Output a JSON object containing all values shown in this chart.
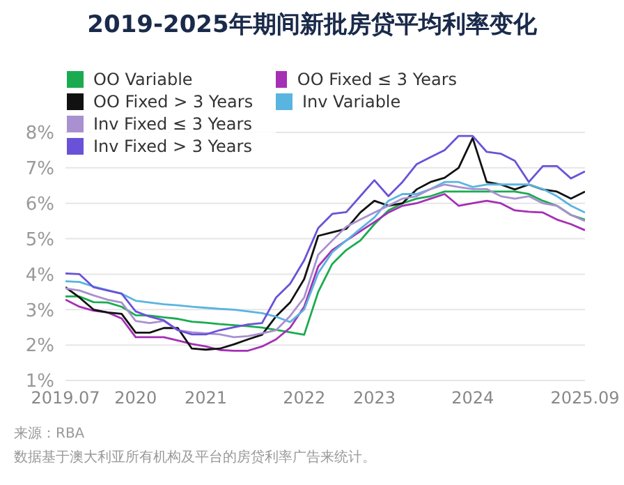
{
  "chart_data": {
    "type": "line",
    "title": "2019-2025年期间新批房贷平均利率变化",
    "categories": [
      "2019.07",
      null,
      null,
      null,
      null,
      "2020",
      null,
      null,
      null,
      null,
      "2021",
      null,
      null,
      null,
      null,
      null,
      null,
      "2022",
      null,
      null,
      null,
      null,
      "2023",
      null,
      null,
      null,
      null,
      null,
      null,
      "2024",
      null,
      null,
      null,
      null,
      null,
      null,
      null,
      "2025.09"
    ],
    "series": [
      {
        "name": "OO Variable",
        "color": "#1aab50",
        "values": [
          3.37,
          3.37,
          3.21,
          3.2,
          3.08,
          2.84,
          2.83,
          2.78,
          2.74,
          2.66,
          2.63,
          2.59,
          2.56,
          2.53,
          2.49,
          2.43,
          2.36,
          2.29,
          3.5,
          4.29,
          4.68,
          4.95,
          5.41,
          5.8,
          6.0,
          6.13,
          6.2,
          6.33,
          6.33,
          6.33,
          6.33,
          6.33,
          6.33,
          6.26,
          6.07,
          5.93,
          5.67,
          5.54
        ]
      },
      {
        "name": "OO Fixed ≤ 3 Years",
        "color": "#a52fb5",
        "values": [
          3.28,
          3.08,
          2.97,
          2.92,
          2.75,
          2.22,
          2.22,
          2.22,
          2.13,
          2.03,
          1.96,
          1.86,
          1.84,
          1.84,
          1.96,
          2.16,
          2.49,
          3.08,
          4.22,
          4.68,
          4.95,
          5.21,
          5.47,
          5.74,
          5.93,
          6.0,
          6.13,
          6.26,
          5.93,
          6.0,
          6.07,
          6.0,
          5.8,
          5.76,
          5.74,
          5.54,
          5.41,
          5.24
        ]
      },
      {
        "name": "OO Fixed > 3 Years",
        "color": "#111111",
        "values": [
          3.63,
          3.34,
          3.0,
          2.92,
          2.88,
          2.35,
          2.35,
          2.48,
          2.48,
          1.9,
          1.87,
          1.9,
          2.02,
          2.16,
          2.29,
          2.81,
          3.2,
          3.86,
          5.08,
          5.18,
          5.28,
          5.74,
          6.07,
          5.93,
          6.0,
          6.39,
          6.6,
          6.72,
          7.0,
          7.84,
          6.6,
          6.53,
          6.39,
          6.53,
          6.39,
          6.33,
          6.13,
          6.33
        ]
      },
      {
        "name": "Inv Variable",
        "color": "#5ab4e0",
        "values": [
          3.8,
          3.78,
          3.65,
          3.55,
          3.45,
          3.25,
          3.2,
          3.15,
          3.12,
          3.08,
          3.05,
          3.02,
          3.0,
          2.95,
          2.9,
          2.8,
          2.65,
          3.0,
          4.03,
          4.62,
          4.95,
          5.28,
          5.6,
          6.07,
          6.26,
          6.26,
          6.4,
          6.6,
          6.6,
          6.46,
          6.53,
          6.53,
          6.53,
          6.53,
          6.4,
          6.2,
          5.93,
          5.74
        ]
      },
      {
        "name": "Inv Fixed ≤ 3 Years",
        "color": "#a990d0",
        "values": [
          3.6,
          3.54,
          3.4,
          3.28,
          3.2,
          2.68,
          2.62,
          2.68,
          2.42,
          2.36,
          2.33,
          2.3,
          2.22,
          2.25,
          2.33,
          2.42,
          2.82,
          3.34,
          4.55,
          4.95,
          5.34,
          5.54,
          5.74,
          5.93,
          6.13,
          6.2,
          6.4,
          6.53,
          6.46,
          6.4,
          6.4,
          6.2,
          6.13,
          6.2,
          6.0,
          5.93,
          5.67,
          5.5
        ]
      },
      {
        "name": "Inv Fixed > 3 Years",
        "color": "#6a52d8",
        "values": [
          4.02,
          4.0,
          3.63,
          3.54,
          3.45,
          2.95,
          2.8,
          2.7,
          2.42,
          2.3,
          2.3,
          2.42,
          2.5,
          2.58,
          2.62,
          3.34,
          3.73,
          4.39,
          5.3,
          5.7,
          5.75,
          6.2,
          6.65,
          6.2,
          6.6,
          7.1,
          7.3,
          7.5,
          7.9,
          7.9,
          7.45,
          7.4,
          7.2,
          6.6,
          7.05,
          7.05,
          6.7,
          6.9
        ]
      }
    ],
    "ylim": [
      1,
      8
    ],
    "yticks": [
      {
        "value": 1,
        "label": "1%"
      },
      {
        "value": 2,
        "label": "2%"
      },
      {
        "value": 3,
        "label": "3%"
      },
      {
        "value": 4,
        "label": "4%"
      },
      {
        "value": 5,
        "label": "5%"
      },
      {
        "value": 6,
        "label": "6%"
      },
      {
        "value": 7,
        "label": "7%"
      },
      {
        "value": 8,
        "label": "8%"
      }
    ],
    "grid": "y",
    "legend": "top left",
    "annotations": [
      "来源：RBA",
      "数据基于澳大利亚所有机构及平台的房贷利率广告来统计。"
    ]
  }
}
